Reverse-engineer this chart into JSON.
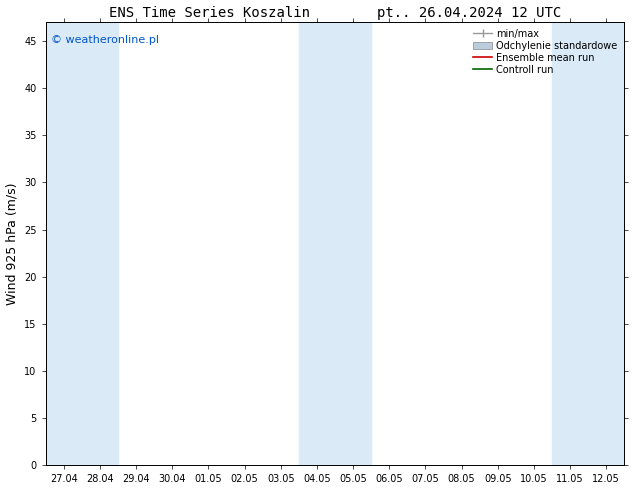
{
  "title_left": "ENS Time Series Koszalin",
  "title_right": "pt.. 26.04.2024 12 UTC",
  "ylabel": "Wind 925 hPa (m/s)",
  "ylim": [
    0,
    47
  ],
  "yticks": [
    0,
    5,
    10,
    15,
    20,
    25,
    30,
    35,
    40,
    45
  ],
  "background_color": "#ffffff",
  "plot_bg_color": "#ffffff",
  "shaded_columns_indices": [
    0,
    1,
    7,
    8,
    14,
    15
  ],
  "shade_color": "#daeaf7",
  "watermark_text": "© weatheronline.pl",
  "watermark_color": "#0055cc",
  "legend_entries": [
    "min/max",
    "Odchylenie standardowe",
    "Ensemble mean run",
    "Controll run"
  ],
  "legend_colors_line": [
    "#999999",
    "#bbccdd",
    "#cc0000",
    "#006600"
  ],
  "title_fontsize": 10,
  "ylabel_fontsize": 9,
  "tick_fontsize": 7,
  "legend_fontsize": 7,
  "watermark_fontsize": 8,
  "start_date": "2024-04-27",
  "num_days": 16,
  "date_labels": [
    "27.04",
    "28.04",
    "29.04",
    "30.04",
    "01.05",
    "02.05",
    "03.05",
    "04.05",
    "05.05",
    "06.05",
    "07.05",
    "08.05",
    "09.05",
    "10.05",
    "11.05",
    "12.05"
  ]
}
